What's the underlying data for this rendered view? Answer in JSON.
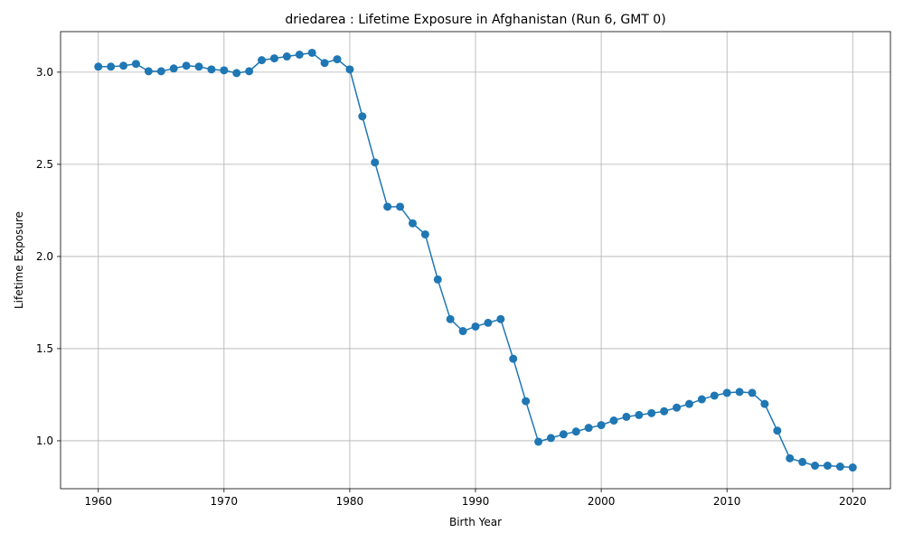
{
  "chart_data": {
    "type": "line",
    "title": "driedarea : Lifetime Exposure in Afghanistan (Run 6, GMT 0)",
    "xlabel": "Birth Year",
    "ylabel": "Lifetime Exposure",
    "xlim": [
      1957,
      2023
    ],
    "ylim": [
      0.74,
      3.22
    ],
    "xticks": [
      1960,
      1970,
      1980,
      1990,
      2000,
      2010,
      2020
    ],
    "yticks": [
      1.0,
      1.5,
      2.0,
      2.5,
      3.0
    ],
    "ytick_labels": [
      "1.0",
      "1.5",
      "2.0",
      "2.5",
      "3.0"
    ],
    "grid": true,
    "series_color": "#1f77b4",
    "marker": "circle",
    "series": [
      {
        "x": [
          1960,
          1961,
          1962,
          1963,
          1964,
          1965,
          1966,
          1967,
          1968,
          1969,
          1970,
          1971,
          1972,
          1973,
          1974,
          1975,
          1976,
          1977,
          1978,
          1979,
          1980,
          1981,
          1982,
          1983,
          1984,
          1985,
          1986,
          1987,
          1988,
          1989,
          1990,
          1991,
          1992,
          1993,
          1994,
          1995,
          1996,
          1997,
          1998,
          1999,
          2000,
          2001,
          2002,
          2003,
          2004,
          2005,
          2006,
          2007,
          2008,
          2009,
          2010,
          2011,
          2012,
          2013,
          2014,
          2015,
          2016,
          2017,
          2018,
          2019,
          2020
        ],
        "values": [
          3.03,
          3.03,
          3.035,
          3.045,
          3.005,
          3.005,
          3.02,
          3.035,
          3.03,
          3.015,
          3.01,
          2.995,
          3.005,
          3.065,
          3.075,
          3.085,
          3.095,
          3.105,
          3.05,
          3.07,
          3.015,
          2.76,
          2.51,
          2.27,
          2.27,
          2.18,
          2.12,
          1.875,
          1.66,
          1.595,
          1.62,
          1.64,
          1.66,
          1.445,
          1.215,
          0.995,
          1.015,
          1.035,
          1.05,
          1.07,
          1.085,
          1.11,
          1.13,
          1.14,
          1.15,
          1.16,
          1.18,
          1.2,
          1.225,
          1.245,
          1.26,
          1.265,
          1.26,
          1.2,
          1.055,
          0.905,
          0.885,
          0.865,
          0.865,
          0.86,
          0.855
        ]
      }
    ]
  }
}
